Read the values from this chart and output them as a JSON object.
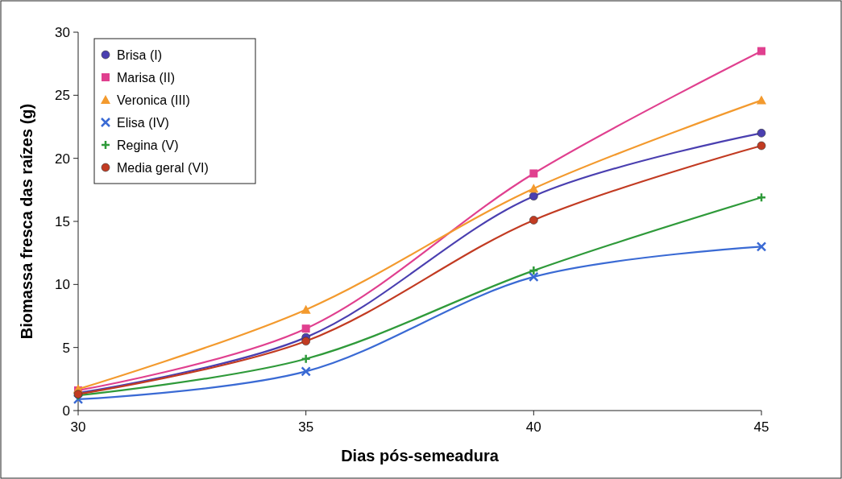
{
  "chart_data": {
    "type": "line",
    "xlabel": "Dias pós-semeadura",
    "ylabel": "Biomassa fresca das raízes (g)",
    "x": [
      30,
      35,
      40,
      45
    ],
    "xlim": [
      30,
      45
    ],
    "xticks": [
      30,
      35,
      40,
      45
    ],
    "ylim": [
      0,
      30
    ],
    "yticks": [
      0,
      5,
      10,
      15,
      20,
      25,
      30
    ],
    "grid": false,
    "legend": "top left",
    "line_style": "solid",
    "series": [
      {
        "name": "Brisa (I)",
        "color": "#4a3fb0",
        "marker": "circle",
        "values": [
          1.4,
          5.8,
          17.0,
          22.0
        ]
      },
      {
        "name": "Marisa (II)",
        "color": "#e0408f",
        "marker": "square",
        "values": [
          1.6,
          6.5,
          18.8,
          28.5
        ]
      },
      {
        "name": "Veronica (III)",
        "color": "#f39a2e",
        "marker": "triangle",
        "values": [
          1.7,
          8.0,
          17.6,
          24.6
        ]
      },
      {
        "name": "Elisa (IV)",
        "color": "#3a6ad4",
        "marker": "cross",
        "values": [
          0.9,
          3.1,
          10.6,
          13.0
        ]
      },
      {
        "name": "Regina (V)",
        "color": "#2f9a3a",
        "marker": "cross",
        "values": [
          1.2,
          4.1,
          11.1,
          16.9
        ]
      },
      {
        "name": "Media geral (VI)",
        "color": "#c23b22",
        "marker": "circle",
        "values": [
          1.3,
          5.5,
          15.1,
          21.0
        ]
      }
    ]
  }
}
